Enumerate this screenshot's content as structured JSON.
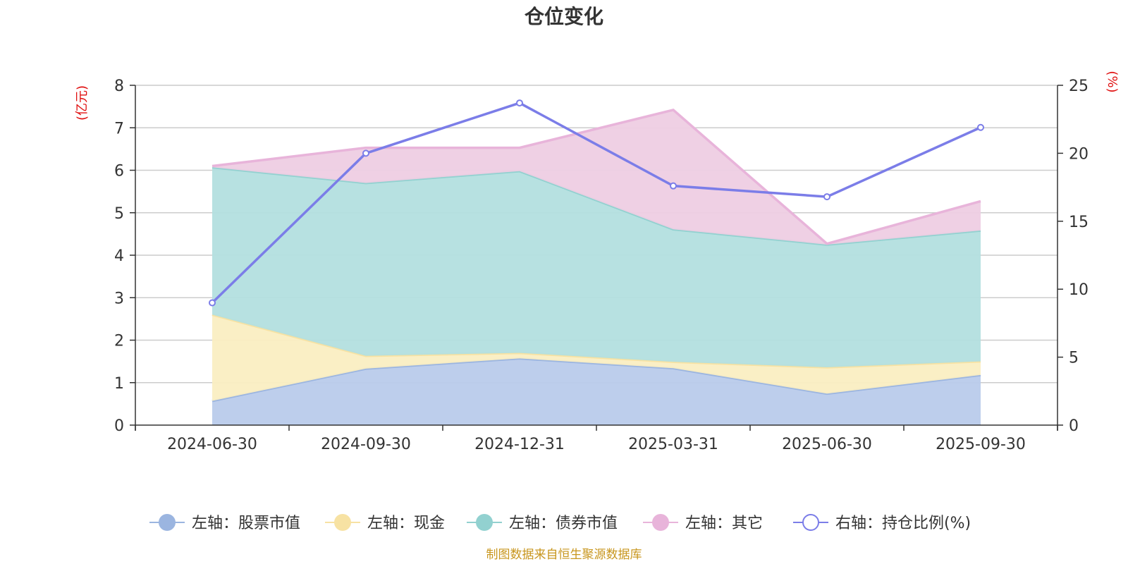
{
  "chart_data": {
    "type": "area",
    "title": "仓位变化",
    "categories": [
      "2024-06-30",
      "2024-09-30",
      "2024-12-31",
      "2025-03-31",
      "2025-06-30",
      "2025-09-30"
    ],
    "left_axis": {
      "unit": "(亿元)",
      "min": 0,
      "max": 8,
      "ticks": [
        "0",
        "1",
        "2",
        "3",
        "4",
        "5",
        "6",
        "7",
        "8"
      ]
    },
    "right_axis": {
      "unit": "(%)",
      "min": 0,
      "max": 25,
      "ticks": [
        "0",
        "5",
        "10",
        "15",
        "20",
        "25"
      ]
    },
    "stacked_series": [
      {
        "name": "左轴：股票市值",
        "color": "#9bb5e0",
        "fill": "#b9cbeb",
        "values": [
          0.57,
          1.33,
          1.57,
          1.34,
          0.74,
          1.18
        ]
      },
      {
        "name": "左轴：现金",
        "color": "#f7e2a3",
        "fill": "#faeec2",
        "values": [
          2.03,
          0.3,
          0.13,
          0.15,
          0.62,
          0.32
        ]
      },
      {
        "name": "左轴：债券市值",
        "color": "#92d1d0",
        "fill": "#b3dfdf",
        "values": [
          3.47,
          4.07,
          4.28,
          3.12,
          2.89,
          3.08
        ]
      },
      {
        "name": "左轴：其它",
        "color": "#e8b4da",
        "fill": "#eecde3",
        "values": [
          0.03,
          0.83,
          0.55,
          2.81,
          0.02,
          0.69
        ]
      }
    ],
    "line_series": {
      "name": "右轴：持仓比例(%)",
      "color": "#7b7de8",
      "values": [
        9.0,
        20.0,
        23.7,
        17.6,
        16.8,
        21.9
      ]
    },
    "grid": true,
    "legend_position": "bottom"
  },
  "footer": {
    "source": "制图数据来自恒生聚源数据库"
  }
}
